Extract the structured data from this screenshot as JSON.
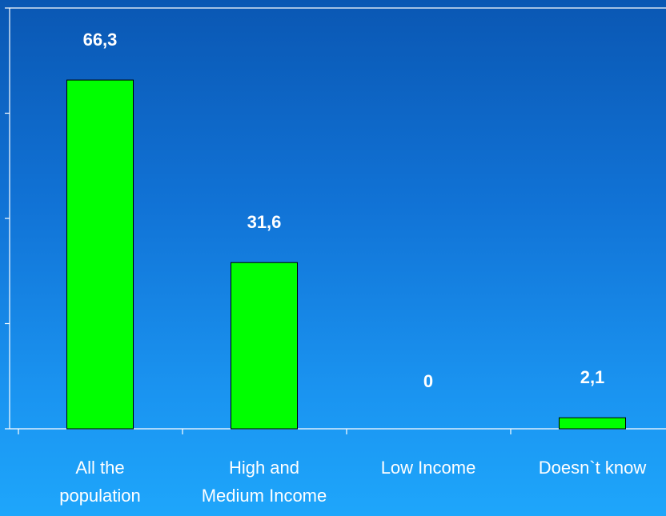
{
  "chart_data": {
    "type": "bar",
    "categories": [
      [
        "All the",
        "population"
      ],
      [
        "High and",
        "Medium Income"
      ],
      [
        "Low Income"
      ],
      [
        "Doesn`t know"
      ]
    ],
    "values": [
      66.3,
      31.6,
      0,
      2.1
    ],
    "data_labels": [
      "66,3",
      "31,6",
      "0",
      "2,1"
    ],
    "ylim": [
      0,
      80
    ],
    "y_ticks": [
      0,
      20,
      40,
      60,
      80
    ],
    "grid": false,
    "legend": "none",
    "bar_color": "#00ff00",
    "bar_edge_color": "#000000",
    "axis_color": "#ffffff"
  }
}
